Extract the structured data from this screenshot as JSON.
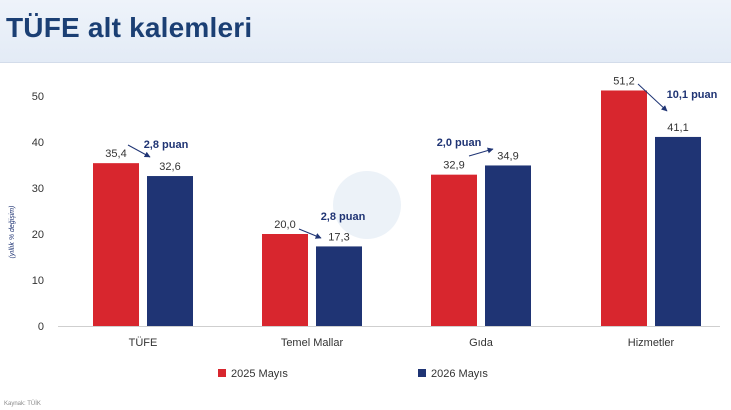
{
  "header": {
    "title": "TÜFE alt kalemleri"
  },
  "footer": {
    "source": "Kaynak: TÜİK"
  },
  "chart_data": {
    "type": "bar",
    "title": "",
    "xlabel": "",
    "ylabel": "(yıllık % değişim)",
    "ylim": [
      0,
      50
    ],
    "yticks": [
      0,
      10,
      20,
      30,
      40,
      50
    ],
    "grid": false,
    "legend_position": "bottom",
    "categories": [
      "TÜFE",
      "Temel Mallar",
      "Gıda",
      "Hizmetler"
    ],
    "series": [
      {
        "name": "2025 Mayıs",
        "color": "#d8262e",
        "values": [
          35.4,
          20.0,
          32.9,
          51.2
        ],
        "labels": [
          "35,4",
          "20,0",
          "32,9",
          "51,2"
        ]
      },
      {
        "name": "2026 Mayıs",
        "color": "#1f3474",
        "values": [
          32.6,
          17.3,
          34.9,
          41.1
        ],
        "labels": [
          "32,6",
          "17,3",
          "34,9",
          "41,1"
        ]
      }
    ],
    "annotations": [
      "2,8 puan",
      "2,8 puan",
      "2,0 puan",
      "10,1 puan"
    ]
  }
}
